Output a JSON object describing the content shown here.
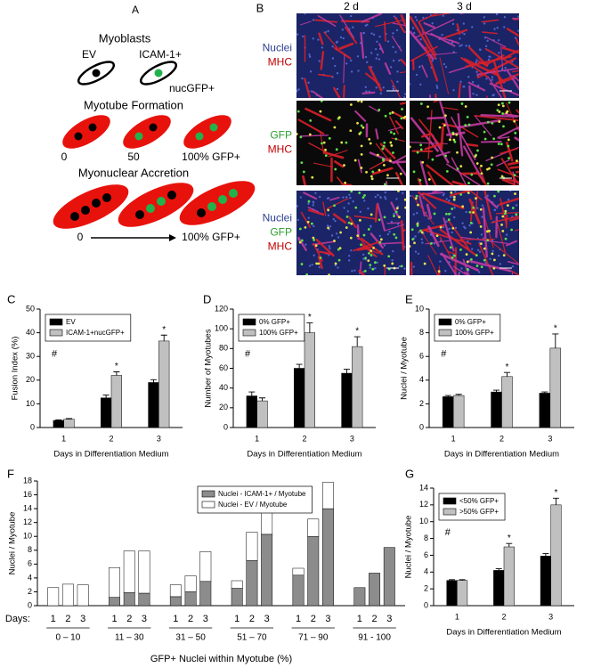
{
  "panel_a": {
    "label": "A",
    "myoblasts": "Myoblasts",
    "ev": "EV",
    "icam": "ICAM-1+",
    "nucgfp": "nucGFP+",
    "myotube_formation": "Myotube Formation",
    "formation_levels": [
      "0",
      "50",
      "100% GFP+"
    ],
    "myonuclear_accretion": "Myonuclear Accretion",
    "accretion_start": "0",
    "accretion_end": "100% GFP+"
  },
  "panel_b": {
    "label": "B",
    "columns": [
      "2 d",
      "3 d"
    ],
    "rows": [
      [
        {
          "text": "Nuclei",
          "color": "#2b3f8f"
        },
        {
          "text": "MHC",
          "color": "#c00000"
        }
      ],
      [
        {
          "text": "GFP",
          "color": "#2e9e2e"
        },
        {
          "text": "MHC",
          "color": "#c00000"
        }
      ],
      [
        {
          "text": "Nuclei",
          "color": "#2b3f8f"
        },
        {
          "text": "GFP",
          "color": "#2e9e2e"
        },
        {
          "text": "MHC",
          "color": "#c00000"
        }
      ]
    ]
  },
  "chart_data": [
    {
      "type": "bar",
      "panel_label": "C",
      "ylabel": "Fusion Index (%)",
      "xlabel": "Days in Differentiation Medium",
      "categories": [
        "1",
        "2",
        "3"
      ],
      "annotation": "#",
      "ylim": [
        0,
        50
      ],
      "yticks": [
        0,
        10,
        20,
        30,
        40,
        50
      ],
      "series": [
        {
          "name": "EV",
          "color": "#000000",
          "values": [
            3,
            12.5,
            19
          ],
          "errors": [
            0.2,
            1.2,
            1.2
          ],
          "significance": [
            null,
            null,
            null
          ]
        },
        {
          "name": "ICAM-1+nucGFP+",
          "color": "#c0c0c0",
          "values": [
            3.5,
            22,
            36.5
          ],
          "errors": [
            0.3,
            1.5,
            2.5
          ],
          "significance": [
            null,
            "*",
            "*"
          ]
        }
      ]
    },
    {
      "type": "bar",
      "panel_label": "D",
      "ylabel": "Number of Myotubes",
      "xlabel": "Days in Differentiation Medium",
      "categories": [
        "1",
        "2",
        "3"
      ],
      "annotation": "#",
      "ylim": [
        0,
        120
      ],
      "yticks": [
        0,
        20,
        40,
        60,
        80,
        100,
        120
      ],
      "series": [
        {
          "name": "0% GFP+",
          "color": "#000000",
          "values": [
            32,
            60,
            55
          ],
          "errors": [
            4,
            4,
            4
          ],
          "significance": [
            null,
            null,
            null
          ]
        },
        {
          "name": "100% GFP+",
          "color": "#c0c0c0",
          "values": [
            27,
            96,
            82
          ],
          "errors": [
            3,
            10,
            10
          ],
          "significance": [
            null,
            "*",
            "*"
          ]
        }
      ]
    },
    {
      "type": "bar",
      "panel_label": "E",
      "ylabel": "Nuclei / Myotube",
      "xlabel": "Days in Differentiation Medium",
      "categories": [
        "1",
        "2",
        "3"
      ],
      "annotation": "#",
      "ylim": [
        0,
        10
      ],
      "yticks": [
        0,
        2,
        4,
        6,
        8,
        10
      ],
      "series": [
        {
          "name": "0% GFP+",
          "color": "#000000",
          "values": [
            2.6,
            3.0,
            2.9
          ],
          "errors": [
            0.1,
            0.15,
            0.1
          ],
          "significance": [
            null,
            null,
            null
          ]
        },
        {
          "name": "100% GFP+",
          "color": "#c0c0c0",
          "values": [
            2.7,
            4.3,
            6.7
          ],
          "errors": [
            0.1,
            0.35,
            1.2
          ],
          "significance": [
            null,
            "*",
            "*"
          ]
        }
      ]
    },
    {
      "type": "stacked_bar",
      "panel_label": "F",
      "ylabel": "Nuclei / Myotube",
      "xlabel": "GFP+  Nuclei within Myotube (%)",
      "days_label": "Days:",
      "groups": [
        "0 – 10",
        "11 – 30",
        "31 – 50",
        "51 – 70",
        "71 – 90",
        "91 - 100"
      ],
      "categories": [
        "1",
        "2",
        "3",
        "1",
        "2",
        "3",
        "1",
        "2",
        "3",
        "1",
        "2",
        "3",
        "1",
        "2",
        "3",
        "1",
        "2",
        "3"
      ],
      "ylim": [
        0,
        18
      ],
      "yticks": [
        0,
        2,
        4,
        6,
        8,
        10,
        12,
        14,
        16,
        18
      ],
      "series": [
        {
          "name": "Nuclei - ICAM-1+ / Myotube",
          "color": "#8c8c8c",
          "values": [
            0,
            0,
            0,
            1.2,
            1.9,
            1.8,
            1.3,
            2.0,
            3.5,
            2.5,
            6.5,
            10.3,
            4.4,
            10.0,
            14.0,
            2.6,
            4.7,
            8.4
          ]
        },
        {
          "name": "Nuclei - EV / Myotube",
          "color": "#ffffff",
          "values": [
            2.6,
            3.1,
            3.0,
            4.3,
            6.0,
            6.1,
            1.7,
            2.3,
            4.3,
            1.1,
            4.1,
            6.7,
            1.0,
            2.5,
            3.8,
            0,
            0,
            0
          ]
        }
      ]
    },
    {
      "type": "bar",
      "panel_label": "G",
      "ylabel": "Nuclei / Myotube",
      "xlabel": "Days in Differentiation Medium",
      "categories": [
        "1",
        "2",
        "3"
      ],
      "annotation": "#",
      "ylim": [
        0,
        14
      ],
      "yticks": [
        0,
        2,
        4,
        6,
        8,
        10,
        12,
        14
      ],
      "series": [
        {
          "name": "<50% GFP+",
          "color": "#000000",
          "values": [
            3.0,
            4.2,
            5.9
          ],
          "errors": [
            0.1,
            0.2,
            0.3
          ],
          "significance": [
            null,
            null,
            null
          ]
        },
        {
          "name": ">50% GFP+",
          "color": "#c0c0c0",
          "values": [
            3.0,
            7.0,
            12.0
          ],
          "errors": [
            0.1,
            0.4,
            0.8
          ],
          "significance": [
            null,
            "*",
            "*"
          ]
        }
      ]
    }
  ]
}
